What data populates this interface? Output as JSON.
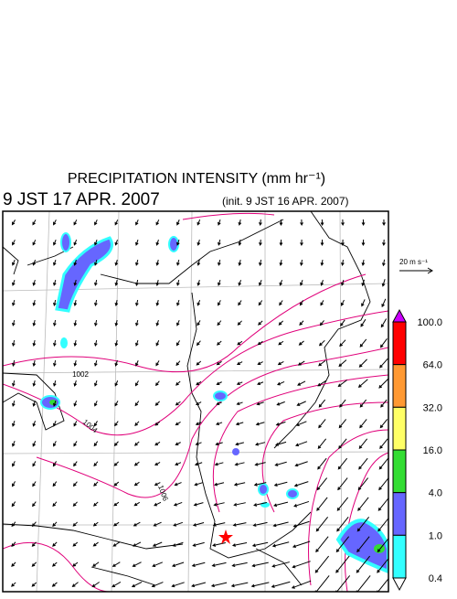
{
  "header": {
    "title": "PRECIPITATION INTENSITY (mm hr⁻¹)",
    "valid_time": "9 JST 17 APR. 2007",
    "init_time": "(init. 9 JST 16 APR. 2007)"
  },
  "wind_scale": {
    "label": "20 m s⁻¹"
  },
  "colorbar": {
    "labels": [
      "100.0",
      "64.0",
      "32.0",
      "16.0",
      "4.0",
      "1.0",
      "0.4"
    ],
    "colors": [
      "#cc00ff",
      "#ff0000",
      "#ff9933",
      "#ffff66",
      "#33dd33",
      "#6666ff",
      "#33ffff",
      "#ffffff"
    ]
  },
  "map": {
    "contour_labels": [
      "1002",
      "1004",
      "1006"
    ]
  }
}
